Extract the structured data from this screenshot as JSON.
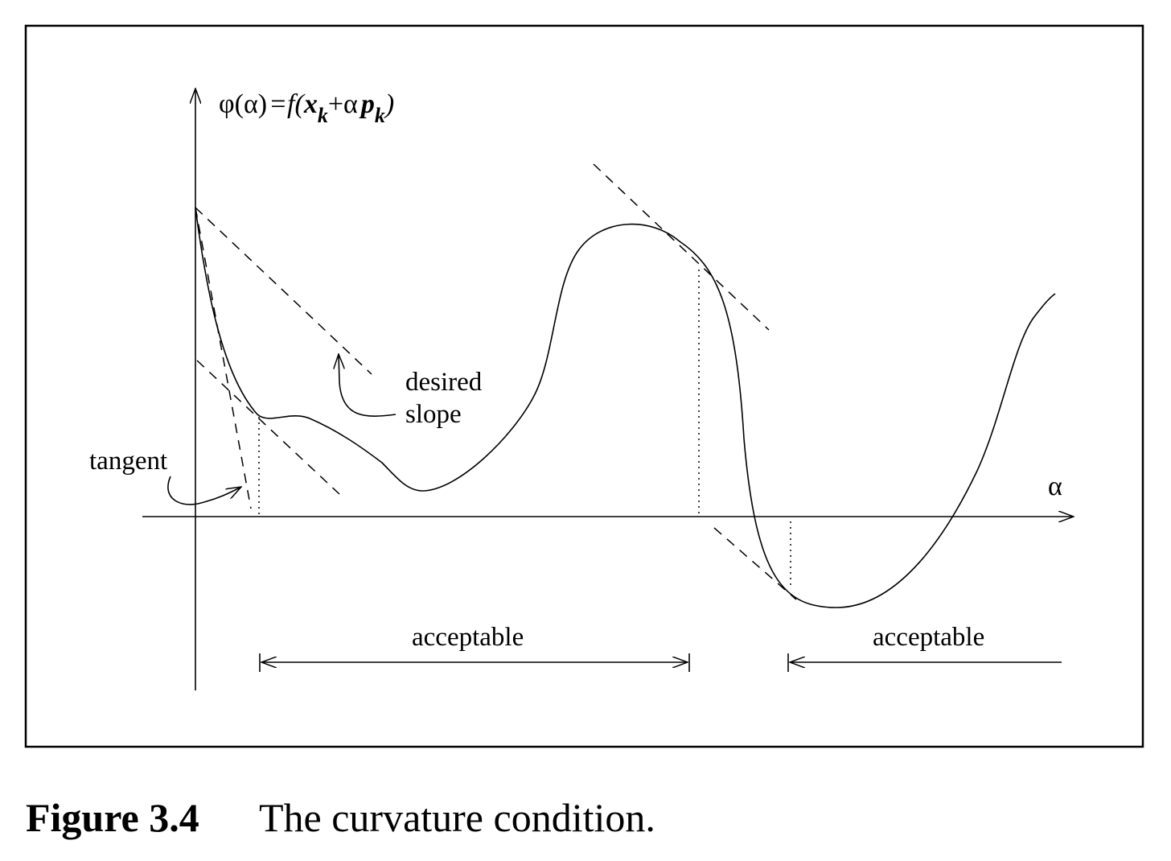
{
  "diagram": {
    "y_axis_label": {
      "phi_alpha": "φ(α)",
      "equals": "=",
      "f_open": "f(",
      "x": "x",
      "x_sub": "k",
      "plus_alpha": "+α",
      "p": "p",
      "p_sub": "k",
      "close": ")"
    },
    "x_axis_label": "α",
    "tangent_label": "tangent",
    "desired_slope_line1": "desired",
    "desired_slope_line2": "slope",
    "acceptable_label_1": "acceptable",
    "acceptable_label_2": "acceptable"
  },
  "caption": {
    "number": "Figure 3.4",
    "text": "The curvature condition."
  }
}
